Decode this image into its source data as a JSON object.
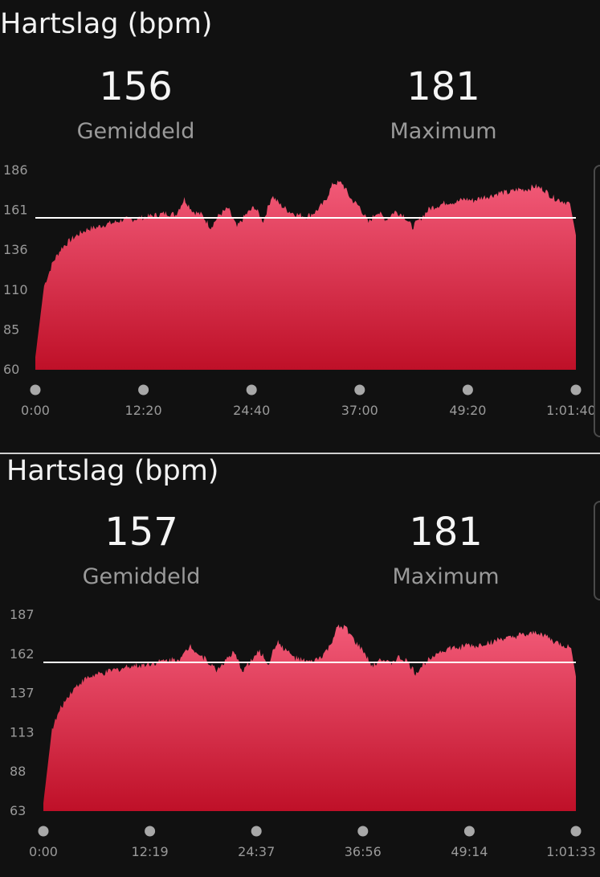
{
  "panels": [
    {
      "title": "Hartslag (bpm)",
      "stats": [
        {
          "value": "156",
          "label": "Gemiddeld"
        },
        {
          "value": "181",
          "label": "Maximum"
        }
      ]
    },
    {
      "title": "Hartslag (bpm)",
      "stats": [
        {
          "value": "157",
          "label": "Gemiddeld"
        },
        {
          "value": "181",
          "label": "Maximum"
        }
      ]
    }
  ],
  "colors": {
    "background": "#111111",
    "fill_top": "#f25a78",
    "fill_bottom": "#bf1028",
    "average_line": "#ffffff",
    "tick_dot": "#a8a8a8",
    "tick_text": "#9a9a9a"
  },
  "chart_data": [
    {
      "type": "area",
      "title": "Hartslag (bpm)",
      "xlabel": "",
      "ylabel": "",
      "y_ticks": [
        "60",
        "85",
        "110",
        "136",
        "161",
        "186"
      ],
      "ylim": [
        60,
        186
      ],
      "x_ticks": [
        "0:00",
        "12:20",
        "24:40",
        "37:00",
        "49:20",
        "1:01:40"
      ],
      "average": 156,
      "maximum": 181,
      "grid": false,
      "series": [
        {
          "x_minutes": [
            0,
            1,
            2,
            3,
            4,
            5,
            6,
            7,
            8,
            9,
            10,
            11,
            12,
            13,
            14,
            15,
            16,
            17,
            18,
            19,
            20,
            21,
            22,
            23,
            24,
            25,
            26,
            27,
            28,
            29,
            30,
            31,
            32,
            33,
            34,
            35,
            36,
            37,
            38,
            39,
            40,
            41,
            42,
            43,
            44,
            45,
            46,
            47,
            48,
            49,
            50,
            51,
            52,
            53,
            54,
            55,
            56,
            57,
            58,
            59,
            60,
            61,
            61.67
          ],
          "values": [
            68,
            113,
            128,
            137,
            142,
            146,
            149,
            150,
            152,
            153,
            155,
            155,
            156,
            157,
            158,
            159,
            158,
            168,
            160,
            158,
            150,
            158,
            162,
            150,
            158,
            163,
            154,
            170,
            164,
            160,
            158,
            157,
            160,
            166,
            178,
            178,
            168,
            163,
            153,
            160,
            155,
            160,
            158,
            150,
            156,
            162,
            164,
            166,
            166,
            168,
            167,
            169,
            170,
            172,
            172,
            174,
            174,
            176,
            174,
            169,
            167,
            165,
            145
          ]
        }
      ]
    },
    {
      "type": "area",
      "title": "Hartslag (bpm)",
      "xlabel": "",
      "ylabel": "",
      "y_ticks": [
        "63",
        "88",
        "113",
        "137",
        "162",
        "187"
      ],
      "ylim": [
        63,
        187
      ],
      "x_ticks": [
        "0:00",
        "12:19",
        "24:37",
        "36:56",
        "49:14",
        "1:01:33"
      ],
      "average": 157,
      "maximum": 181,
      "grid": false,
      "series": [
        {
          "x_minutes": [
            0,
            1,
            2,
            3,
            4,
            5,
            6,
            7,
            8,
            9,
            10,
            11,
            12,
            13,
            14,
            15,
            16,
            17,
            18,
            19,
            20,
            21,
            22,
            23,
            24,
            25,
            26,
            27,
            28,
            29,
            30,
            31,
            32,
            33,
            34,
            35,
            36,
            37,
            38,
            39,
            40,
            41,
            42,
            43,
            44,
            45,
            46,
            47,
            48,
            49,
            50,
            51,
            52,
            53,
            54,
            55,
            56,
            57,
            58,
            59,
            60,
            61,
            61.55
          ],
          "values": [
            68,
            115,
            128,
            137,
            143,
            147,
            149,
            150,
            152,
            153,
            155,
            155,
            156,
            157,
            158,
            159,
            160,
            168,
            162,
            158,
            152,
            158,
            163,
            152,
            158,
            164,
            156,
            170,
            165,
            160,
            158,
            157,
            160,
            166,
            179,
            179,
            170,
            164,
            154,
            160,
            156,
            160,
            158,
            150,
            156,
            162,
            164,
            166,
            166,
            168,
            167,
            169,
            170,
            172,
            172,
            174,
            174,
            176,
            174,
            170,
            168,
            166,
            148
          ]
        }
      ]
    }
  ]
}
